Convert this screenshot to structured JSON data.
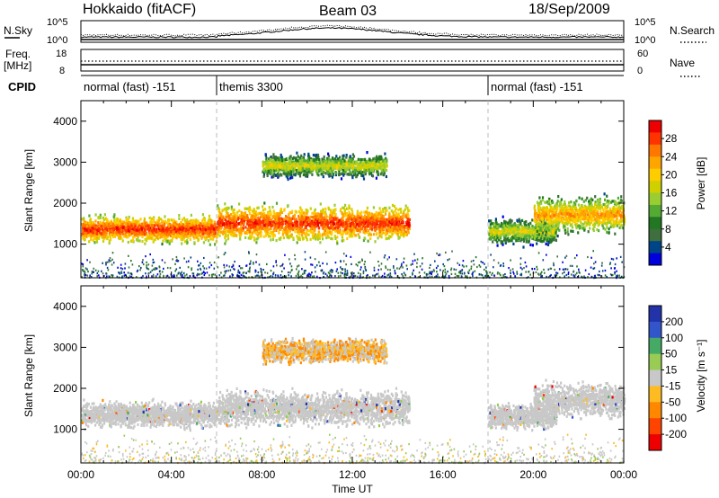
{
  "header": {
    "station": "Hokkaido (fitACF)",
    "beam": "Beam 03",
    "date": "18/Sep/2009"
  },
  "top_panels": {
    "nsky_label": "N.Sky",
    "nsearch_label": "N.Search",
    "freq_label": "Freq.",
    "freq_unit": "[MHz]",
    "nave_label": "Nave",
    "cpid_label": "CPID",
    "nsky_ticks": [
      "10^5",
      "10^0"
    ],
    "nsearch_ticks": [
      "10^5",
      "10^0"
    ],
    "freq_ticks": [
      "18",
      "8"
    ],
    "nave_ticks": [
      "60",
      "0"
    ]
  },
  "cpid_segments": [
    {
      "label": "normal (fast) -151",
      "start_h": 0,
      "end_h": 6
    },
    {
      "label": "themis 3300",
      "start_h": 6,
      "end_h": 18
    },
    {
      "label": "normal (fast) -151",
      "start_h": 18,
      "end_h": 24
    }
  ],
  "colors": {
    "frame": "#000000",
    "mode_line": "#bbbbbb"
  },
  "chart_data": [
    {
      "type": "heatmap",
      "title": "",
      "xlabel": "",
      "ylabel": "Slant Range [km]",
      "xlim": [
        0,
        24
      ],
      "ylim": [
        180,
        4500
      ],
      "y_ticks": [
        "1000",
        "2000",
        "3000",
        "4000"
      ],
      "colorbar": {
        "label": "Power [dB]",
        "tick_labels": [
          "28",
          "24",
          "20",
          "16",
          "12",
          "8",
          "4"
        ],
        "colors": [
          "#ee0000",
          "#ff3300",
          "#ff7700",
          "#ffa500",
          "#ffcc00",
          "#d0d000",
          "#9acd32",
          "#55aa33",
          "#227722",
          "#3f6f3f",
          "#004488",
          "#0000dd"
        ]
      },
      "echo_bands": [
        {
          "start_h": 0.0,
          "end_h": 6.0,
          "center_km": 1350,
          "width_km": 450,
          "intensity": "strong"
        },
        {
          "start_h": 6.0,
          "end_h": 14.5,
          "center_km": 1500,
          "width_km": 600,
          "intensity": "strong"
        },
        {
          "start_h": 8.0,
          "end_h": 13.5,
          "center_km": 2900,
          "width_km": 400,
          "intensity": "weak"
        },
        {
          "start_h": 18.0,
          "end_h": 21.0,
          "center_km": 1300,
          "width_km": 450,
          "intensity": "weak"
        },
        {
          "start_h": 20.0,
          "end_h": 24.0,
          "center_km": 1700,
          "width_km": 600,
          "intensity": "medium"
        }
      ]
    },
    {
      "type": "heatmap",
      "title": "",
      "xlabel": "Time UT",
      "ylabel": "Slant Range [km]",
      "xlim": [
        0,
        24
      ],
      "ylim": [
        180,
        4500
      ],
      "x_ticks": [
        "00:00",
        "04:00",
        "08:00",
        "12:00",
        "16:00",
        "20:00",
        "00:00"
      ],
      "y_ticks": [
        "1000",
        "2000",
        "3000",
        "4000"
      ],
      "colorbar": {
        "label": "Velocity [m s⁻¹]",
        "tick_labels": [
          "200",
          "100",
          "50",
          "15",
          "-15",
          "-50",
          "-100",
          "-200"
        ],
        "colors": [
          "#2233aa",
          "#3355cc",
          "#44aa66",
          "#99cc55",
          "#c8c8c8",
          "#ffbb22",
          "#ff8800",
          "#ff4400",
          "#ee0000"
        ]
      },
      "echo_bands": [
        {
          "start_h": 0.0,
          "end_h": 6.0,
          "center_km": 1350,
          "width_km": 450,
          "velocity": "ground scatter"
        },
        {
          "start_h": 6.0,
          "end_h": 14.5,
          "center_km": 1500,
          "width_km": 600,
          "velocity": "ground scatter"
        },
        {
          "start_h": 8.0,
          "end_h": 13.5,
          "center_km": 2900,
          "width_km": 400,
          "velocity": "negative"
        },
        {
          "start_h": 18.0,
          "end_h": 21.0,
          "center_km": 1300,
          "width_km": 450,
          "velocity": "ground scatter"
        },
        {
          "start_h": 20.0,
          "end_h": 24.0,
          "center_km": 1700,
          "width_km": 600,
          "velocity": "ground scatter"
        }
      ]
    }
  ]
}
